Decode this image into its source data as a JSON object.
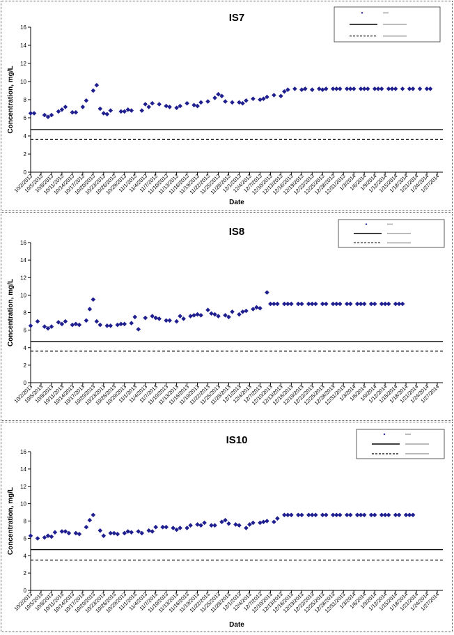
{
  "chart_data": [
    {
      "type": "scatter",
      "title": "IS7",
      "xlabel": "Date",
      "ylabel": "Concentration, mg/L",
      "ylim": [
        0,
        16
      ],
      "yticks": [
        "0",
        "2",
        "4",
        "6",
        "8",
        "10",
        "12",
        "14",
        "16"
      ],
      "xticks": [
        "10/2/2013",
        "10/5/2013",
        "10/8/2013",
        "10/11/2013",
        "10/14/2013",
        "10/17/2013",
        "10/20/2013",
        "10/23/2013",
        "10/26/2013",
        "10/29/2013",
        "11/1/2013",
        "11/4/2013",
        "11/7/2013",
        "11/10/2013",
        "11/13/2013",
        "11/16/2013",
        "11/19/2013",
        "11/22/2013",
        "11/25/2013",
        "11/28/2013",
        "12/1/2013",
        "12/4/2013",
        "12/7/2013",
        "12/10/2013",
        "12/13/2013",
        "12/16/2013",
        "12/19/2013",
        "12/22/2013",
        "12/25/2013",
        "12/28/2013",
        "12/31/2013",
        "1/3/2014",
        "1/6/2014",
        "1/9/2014",
        "1/12/2014",
        "1/15/2014",
        "1/18/2014",
        "1/21/2014",
        "1/24/2014",
        "1/27/2014"
      ],
      "grid": false,
      "legend_position": "top-right",
      "legend_entries": [
        "",
        "",
        ""
      ],
      "series": [
        {
          "kind": "scatter",
          "color": "#1f1f8f",
          "x": [
            "10/2/2013",
            "10/3/2013",
            "10/6/2013",
            "10/7/2013",
            "10/8/2013",
            "10/10/2013",
            "10/11/2013",
            "10/12/2013",
            "10/14/2013",
            "10/15/2013",
            "10/17/2013",
            "10/18/2013",
            "10/20/2013",
            "10/21/2013",
            "10/22/2013",
            "10/23/2013",
            "10/24/2013",
            "10/25/2013",
            "10/28/2013",
            "10/29/2013",
            "10/30/2013",
            "10/31/2013",
            "11/3/2013",
            "11/4/2013",
            "11/5/2013",
            "11/6/2013",
            "11/8/2013",
            "11/10/2013",
            "11/11/2013",
            "11/13/2013",
            "11/14/2013",
            "11/16/2013",
            "11/18/2013",
            "11/19/2013",
            "11/20/2013",
            "11/22/2013",
            "11/24/2013",
            "11/25/2013",
            "11/26/2013",
            "11/27/2013",
            "11/29/2013",
            "12/1/2013",
            "12/2/2013",
            "12/3/2013",
            "12/5/2013",
            "12/7/2013",
            "12/8/2013",
            "12/9/2013",
            "12/11/2013",
            "12/13/2013",
            "12/14/2013",
            "12/15/2013",
            "12/17/2013",
            "12/19/2013",
            "12/20/2013",
            "12/22/2013",
            "12/24/2013",
            "12/25/2013",
            "12/26/2013",
            "12/28/2013",
            "12/29/2013",
            "12/30/2013",
            "1/1/2014",
            "1/2/2014",
            "1/3/2014",
            "1/5/2014",
            "1/6/2014",
            "1/7/2014",
            "1/9/2014",
            "1/10/2014",
            "1/11/2014",
            "1/13/2014",
            "1/14/2014",
            "1/15/2014",
            "1/17/2014",
            "1/19/2014",
            "1/20/2014",
            "1/22/2014",
            "1/24/2014",
            "1/25/2014"
          ],
          "y": [
            6.5,
            6.5,
            6.3,
            6.1,
            6.3,
            6.7,
            6.9,
            7.2,
            6.6,
            6.6,
            7.2,
            7.9,
            9.0,
            9.6,
            7.0,
            6.5,
            6.4,
            6.8,
            6.7,
            6.7,
            6.9,
            6.8,
            6.8,
            7.5,
            7.2,
            7.6,
            7.5,
            7.3,
            7.2,
            7.1,
            7.3,
            7.6,
            7.4,
            7.3,
            7.7,
            7.8,
            8.2,
            8.6,
            8.4,
            7.8,
            7.7,
            7.7,
            7.6,
            7.9,
            8.1,
            8.0,
            8.1,
            8.3,
            8.5,
            8.4,
            8.9,
            9.1,
            9.2,
            9.1,
            9.2,
            9.1,
            9.2,
            9.1,
            9.2,
            9.2,
            9.2,
            9.2,
            9.2,
            9.2,
            9.2,
            9.2,
            9.2,
            9.2,
            9.2,
            9.2,
            9.2,
            9.2,
            9.2,
            9.2,
            9.2,
            9.2,
            9.2,
            9.2,
            9.2,
            9.2
          ]
        },
        {
          "kind": "hline",
          "y": 4.7,
          "style": "solid"
        },
        {
          "kind": "hline",
          "y": 3.6,
          "style": "dashed"
        }
      ]
    },
    {
      "type": "scatter",
      "title": "IS8",
      "xlabel": "Date",
      "ylabel": "Concentration, mg/L",
      "ylim": [
        0,
        16
      ],
      "yticks": [
        "0",
        "2",
        "4",
        "6",
        "8",
        "10",
        "12",
        "14",
        "16"
      ],
      "xticks": [
        "10/2/2013",
        "10/5/2013",
        "10/8/2013",
        "10/11/2013",
        "10/14/2013",
        "10/17/2013",
        "10/20/2013",
        "10/23/2013",
        "10/26/2013",
        "10/29/2013",
        "11/1/2013",
        "11/4/2013",
        "11/7/2013",
        "11/10/2013",
        "11/13/2013",
        "11/16/2013",
        "11/19/2013",
        "11/22/2013",
        "11/25/2013",
        "11/28/2013",
        "12/1/2013",
        "12/4/2013",
        "12/7/2013",
        "12/10/2013",
        "12/13/2013",
        "12/16/2013",
        "12/19/2013",
        "12/22/2013",
        "12/25/2013",
        "12/28/2013",
        "12/31/2013",
        "1/3/2014",
        "1/6/2014",
        "1/9/2014",
        "1/12/2014",
        "1/15/2014",
        "1/18/2014",
        "1/21/2014",
        "1/24/2014",
        "1/27/2014"
      ],
      "grid": false,
      "legend_position": "top-right",
      "legend_entries": [
        "",
        "",
        ""
      ],
      "series": [
        {
          "kind": "scatter",
          "color": "#1f1f8f",
          "x": [
            "10/2/2013",
            "10/4/2013",
            "10/6/2013",
            "10/7/2013",
            "10/8/2013",
            "10/10/2013",
            "10/11/2013",
            "10/12/2013",
            "10/14/2013",
            "10/15/2013",
            "10/16/2013",
            "10/18/2013",
            "10/19/2013",
            "10/20/2013",
            "10/21/2013",
            "10/22/2013",
            "10/24/2013",
            "10/25/2013",
            "10/27/2013",
            "10/28/2013",
            "10/29/2013",
            "10/31/2013",
            "11/1/2013",
            "11/2/2013",
            "11/4/2013",
            "11/6/2013",
            "11/7/2013",
            "11/8/2013",
            "11/10/2013",
            "11/11/2013",
            "11/13/2013",
            "11/14/2013",
            "11/15/2013",
            "11/17/2013",
            "11/18/2013",
            "11/19/2013",
            "11/20/2013",
            "11/22/2013",
            "11/23/2013",
            "11/24/2013",
            "11/25/2013",
            "11/27/2013",
            "11/28/2013",
            "11/29/2013",
            "12/1/2013",
            "12/2/2013",
            "12/3/2013",
            "12/5/2013",
            "12/6/2013",
            "12/7/2013",
            "12/9/2013",
            "12/10/2013",
            "12/11/2013",
            "12/12/2013",
            "12/14/2013",
            "12/15/2013",
            "12/16/2013",
            "12/18/2013",
            "12/19/2013",
            "12/21/2013",
            "12/22/2013",
            "12/23/2013",
            "12/25/2013",
            "12/26/2013",
            "12/28/2013",
            "12/29/2013",
            "12/30/2013",
            "1/1/2014",
            "1/2/2014",
            "1/4/2014",
            "1/5/2014",
            "1/6/2014",
            "1/8/2014",
            "1/9/2014",
            "1/11/2014",
            "1/12/2014",
            "1/13/2014",
            "1/15/2014",
            "1/16/2014",
            "1/17/2014"
          ],
          "y": [
            6.5,
            7.0,
            6.4,
            6.2,
            6.4,
            6.9,
            6.7,
            7.0,
            6.6,
            6.7,
            6.6,
            7.1,
            8.4,
            9.5,
            7.0,
            6.6,
            6.5,
            6.5,
            6.6,
            6.7,
            6.7,
            6.8,
            7.5,
            6.1,
            7.4,
            7.6,
            7.4,
            7.3,
            7.1,
            7.1,
            7.0,
            7.6,
            7.3,
            7.6,
            7.7,
            7.8,
            7.7,
            8.3,
            7.9,
            7.8,
            7.6,
            7.7,
            7.5,
            8.1,
            7.8,
            8.1,
            8.2,
            8.4,
            8.6,
            8.5,
            10.3,
            9.0,
            9.0,
            9.0,
            9.0,
            9.0,
            9.0,
            9.0,
            9.0,
            9.0,
            9.0,
            9.0,
            9.0,
            9.0,
            9.0,
            9.0,
            9.0,
            9.0,
            9.0,
            9.0,
            9.0,
            9.0,
            9.0,
            9.0,
            9.0,
            9.0,
            9.0,
            9.0,
            9.0,
            9.0
          ]
        },
        {
          "kind": "hline",
          "y": 4.7,
          "style": "solid"
        },
        {
          "kind": "hline",
          "y": 3.6,
          "style": "dashed"
        }
      ]
    },
    {
      "type": "scatter",
      "title": "IS10",
      "xlabel": "Date",
      "ylabel": "Concentration, mg/L",
      "ylim": [
        0,
        16
      ],
      "yticks": [
        "0",
        "2",
        "4",
        "6",
        "8",
        "10",
        "12",
        "14",
        "16"
      ],
      "xticks": [
        "10/2/2013",
        "10/5/2013",
        "10/8/2013",
        "10/11/2013",
        "10/14/2013",
        "10/17/2013",
        "10/20/2013",
        "10/23/2013",
        "10/26/2013",
        "10/29/2013",
        "11/1/2013",
        "11/4/2013",
        "11/7/2013",
        "11/10/2013",
        "11/13/2013",
        "11/16/2013",
        "11/19/2013",
        "11/22/2013",
        "11/25/2013",
        "11/28/2013",
        "12/1/2013",
        "12/4/2013",
        "12/7/2013",
        "12/10/2013",
        "12/13/2013",
        "12/16/2013",
        "12/19/2013",
        "12/22/2013",
        "12/25/2013",
        "12/28/2013",
        "12/31/2013",
        "1/3/2014",
        "1/6/2014",
        "1/9/2014",
        "1/12/2014",
        "1/15/2014",
        "1/18/2014",
        "1/21/2014",
        "1/24/2014",
        "1/27/2014"
      ],
      "grid": false,
      "legend_position": "top-right",
      "legend_entries": [
        "",
        "",
        ""
      ],
      "series": [
        {
          "kind": "scatter",
          "color": "#1f1f8f",
          "x": [
            "10/2/2013",
            "10/4/2013",
            "10/6/2013",
            "10/7/2013",
            "10/8/2013",
            "10/9/2013",
            "10/11/2013",
            "10/12/2013",
            "10/13/2013",
            "10/15/2013",
            "10/16/2013",
            "10/18/2013",
            "10/19/2013",
            "10/20/2013",
            "10/22/2013",
            "10/23/2013",
            "10/25/2013",
            "10/26/2013",
            "10/27/2013",
            "10/29/2013",
            "10/30/2013",
            "10/31/2013",
            "11/2/2013",
            "11/3/2013",
            "11/5/2013",
            "11/6/2013",
            "11/7/2013",
            "11/9/2013",
            "11/10/2013",
            "11/12/2013",
            "11/13/2013",
            "11/14/2013",
            "11/16/2013",
            "11/17/2013",
            "11/19/2013",
            "11/20/2013",
            "11/21/2013",
            "11/23/2013",
            "11/24/2013",
            "11/26/2013",
            "11/27/2013",
            "11/28/2013",
            "11/30/2013",
            "12/1/2013",
            "12/3/2013",
            "12/4/2013",
            "12/5/2013",
            "12/7/2013",
            "12/8/2013",
            "12/9/2013",
            "12/11/2013",
            "12/12/2013",
            "12/14/2013",
            "12/15/2013",
            "12/16/2013",
            "12/18/2013",
            "12/19/2013",
            "12/21/2013",
            "12/22/2013",
            "12/23/2013",
            "12/25/2013",
            "12/26/2013",
            "12/28/2013",
            "12/29/2013",
            "12/30/2013",
            "1/1/2014",
            "1/2/2014",
            "1/4/2014",
            "1/5/2014",
            "1/6/2014",
            "1/8/2014",
            "1/9/2014",
            "1/11/2014",
            "1/12/2014",
            "1/13/2014",
            "1/15/2014",
            "1/16/2014",
            "1/18/2014",
            "1/19/2014",
            "1/20/2014"
          ],
          "y": [
            6.3,
            6.0,
            6.1,
            6.3,
            6.2,
            6.7,
            6.8,
            6.8,
            6.6,
            6.6,
            6.5,
            7.3,
            8.1,
            8.7,
            6.9,
            6.3,
            6.6,
            6.6,
            6.5,
            6.6,
            6.8,
            6.7,
            6.8,
            6.6,
            6.9,
            6.8,
            7.3,
            7.3,
            7.3,
            7.2,
            7.0,
            7.2,
            7.2,
            7.5,
            7.6,
            7.5,
            7.8,
            7.5,
            7.5,
            7.9,
            8.1,
            7.7,
            7.6,
            7.5,
            7.2,
            7.6,
            7.8,
            7.8,
            7.9,
            8.0,
            7.9,
            8.3,
            8.7,
            8.7,
            8.7,
            8.7,
            8.7,
            8.7,
            8.7,
            8.7,
            8.7,
            8.7,
            8.7,
            8.7,
            8.7,
            8.7,
            8.7,
            8.7,
            8.7,
            8.7,
            8.7,
            8.7,
            8.7,
            8.7,
            8.7,
            8.7,
            8.7,
            8.7,
            8.7,
            8.7
          ]
        },
        {
          "kind": "hline",
          "y": 4.7,
          "style": "solid"
        },
        {
          "kind": "hline",
          "y": 3.5,
          "style": "dashed"
        }
      ]
    }
  ]
}
